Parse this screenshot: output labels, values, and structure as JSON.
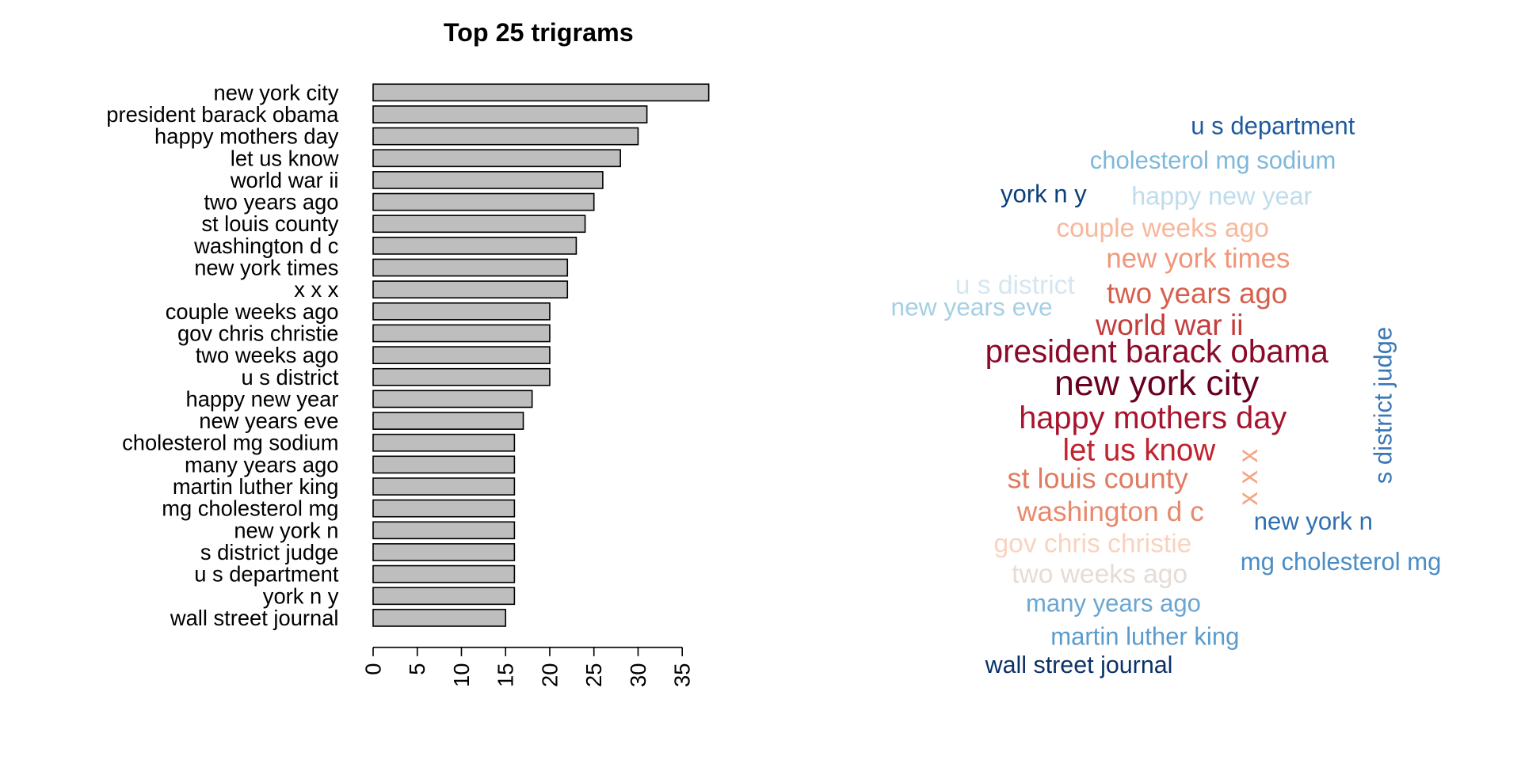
{
  "chart_data": [
    {
      "type": "bar",
      "orientation": "horizontal",
      "title": "Top 25 trigrams",
      "categories": [
        "new york city",
        "president barack obama",
        "happy mothers day",
        "let us know",
        "world war ii",
        "two years ago",
        "st louis county",
        "washington d c",
        "new york times",
        "x x x",
        "couple weeks ago",
        "gov chris christie",
        "two weeks ago",
        "u s district",
        "happy new year",
        "new years eve",
        "cholesterol mg sodium",
        "many years ago",
        "martin luther king",
        "mg cholesterol mg",
        "new york n",
        "s district judge",
        "u s department",
        "york n y",
        "wall street journal"
      ],
      "values": [
        38,
        31,
        30,
        28,
        26,
        25,
        24,
        23,
        22,
        22,
        20,
        20,
        20,
        20,
        18,
        17,
        16,
        16,
        16,
        16,
        16,
        16,
        16,
        16,
        15
      ],
      "color": "#bebebe",
      "xlim": [
        0,
        38
      ],
      "xticks": [
        0,
        5,
        10,
        15,
        20,
        25,
        30,
        35
      ],
      "grid": false
    },
    {
      "type": "wordcloud",
      "colors": [
        "#67001f",
        "#8b0a2a",
        "#a8142e",
        "#c0232f",
        "#c43c3c",
        "#d6604d",
        "#e07b62",
        "#e8896c",
        "#f0967a",
        "#f4a582",
        "#f7b89b",
        "#f9d3bf",
        "#e6dcd6",
        "#d6e6f0",
        "#c0dcec",
        "#a6cfe4",
        "#7fb8da",
        "#6aa6d2",
        "#5a9bcc",
        "#4a8dc5",
        "#2f6fb0",
        "#3a78b5",
        "#1f5a9e",
        "#0b3f7a",
        "#0a3266"
      ]
    }
  ]
}
